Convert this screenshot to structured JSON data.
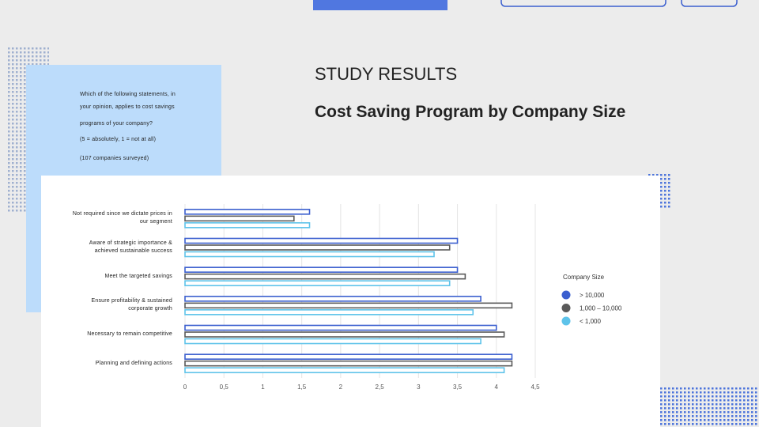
{
  "slide": {
    "heading": "STUDY RESULTS",
    "question_lines": [
      "Which of the following statements, in",
      "your opinion, applies to cost savings",
      "programs of your company?"
    ],
    "scale_note": "(5 = absolutely, 1 = not at all)",
    "sample_note": "(107 companies surveyed)"
  },
  "chart_data": {
    "type": "bar",
    "orientation": "horizontal",
    "title": "Cost Saving Program by Company Size",
    "categories": [
      "Not required since we dictate prices in our segment",
      "Aware of strategic importance & achieved sustainable success",
      "Meet the targeted savings",
      "Ensure profitability & sustained corporate growth",
      "Necessary to remain competitive",
      "Planning and defining actions"
    ],
    "series": [
      {
        "name": "> 10,000",
        "color": "#3b5fcf",
        "values": [
          1.6,
          3.5,
          3.5,
          3.8,
          4.0,
          4.2
        ]
      },
      {
        "name": "1,000 – 10,000",
        "color": "#5a5a5a",
        "values": [
          1.4,
          3.4,
          3.6,
          4.2,
          4.1,
          4.2
        ]
      },
      {
        "name": "< 1,000",
        "color": "#5ec3ea",
        "values": [
          1.6,
          3.2,
          3.4,
          3.7,
          3.8,
          4.1
        ]
      }
    ],
    "xlim": [
      0,
      4.5
    ],
    "xticks": [
      0,
      {
        "value": 0.5,
        "label": "0,5"
      },
      1,
      {
        "value": 1.5,
        "label": "1,5"
      },
      2,
      {
        "value": 2.5,
        "label": "2,5"
      },
      3,
      {
        "value": 3.5,
        "label": "3,5"
      },
      4,
      {
        "value": 4.5,
        "label": "4,5"
      }
    ],
    "grid": true,
    "legend_title": "Company Size",
    "legend_position": "right"
  }
}
